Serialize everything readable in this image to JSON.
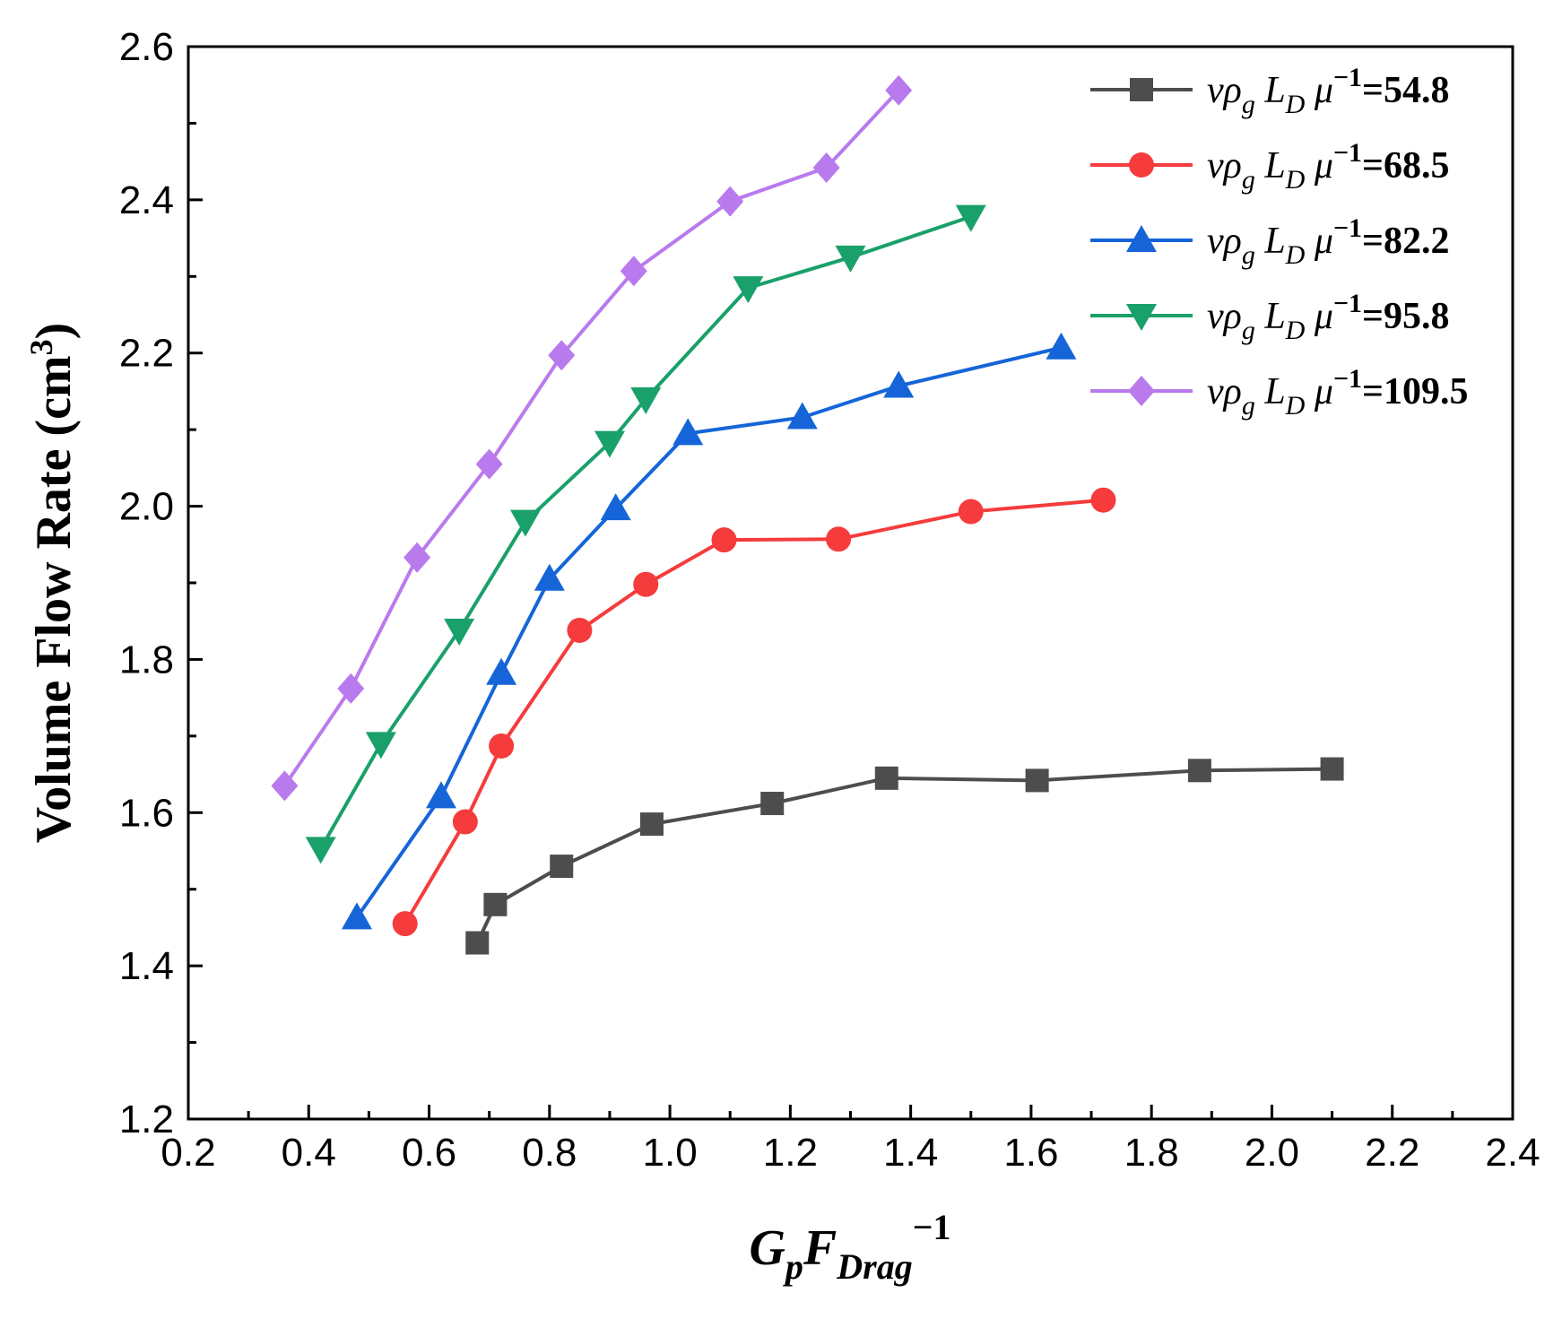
{
  "chart_data": {
    "type": "line",
    "title": "",
    "xlabel": {
      "base1": "G",
      "sub1": "p",
      "base2": "F",
      "sub2": "Drag",
      "sup": "−1"
    },
    "ylabel": {
      "text": "Volume Flow Rate (cm",
      "sup": "3",
      "close": ")"
    },
    "xlim": [
      0.2,
      2.4
    ],
    "ylim": [
      1.2,
      2.6
    ],
    "x_ticks": [
      "0.2",
      "0.4",
      "0.6",
      "0.8",
      "1.0",
      "1.2",
      "1.4",
      "1.6",
      "1.8",
      "2.0",
      "2.2",
      "2.4"
    ],
    "y_ticks": [
      "1.2",
      "1.4",
      "1.6",
      "1.8",
      "2.0",
      "2.2",
      "2.4",
      "2.6"
    ],
    "legend_position": "top-right",
    "legend_label": {
      "v": "v",
      "rho": "ρ",
      "g": "g",
      "L": "L",
      "D": "D",
      "mu": "μ",
      "sup": "−1",
      "eq": "="
    },
    "series": [
      {
        "name": "54.8",
        "color": "#4d4d4d",
        "marker": "square",
        "x": [
          0.68,
          0.71,
          0.82,
          0.97,
          1.17,
          1.36,
          1.61,
          1.88,
          2.1
        ],
        "y": [
          1.43,
          1.48,
          1.53,
          1.585,
          1.612,
          1.645,
          1.642,
          1.655,
          1.657
        ]
      },
      {
        "name": "68.5",
        "color": "#f53b3b",
        "marker": "circle",
        "x": [
          0.56,
          0.66,
          0.72,
          0.85,
          0.96,
          1.09,
          1.28,
          1.5,
          1.72
        ],
        "y": [
          1.455,
          1.588,
          1.687,
          1.838,
          1.898,
          1.956,
          1.957,
          1.993,
          2.008
        ]
      },
      {
        "name": "82.2",
        "color": "#1565d8",
        "marker": "triangle-up",
        "x": [
          0.48,
          0.62,
          0.72,
          0.8,
          0.91,
          1.03,
          1.22,
          1.38,
          1.65
        ],
        "y": [
          1.463,
          1.621,
          1.782,
          1.905,
          1.997,
          2.095,
          2.116,
          2.157,
          2.207
        ]
      },
      {
        "name": "95.8",
        "color": "#1aa06a",
        "marker": "triangle-down",
        "x": [
          0.42,
          0.52,
          0.65,
          0.76,
          0.9,
          0.96,
          1.13,
          1.3,
          1.5
        ],
        "y": [
          1.553,
          1.69,
          1.838,
          1.98,
          2.083,
          2.14,
          2.285,
          2.325,
          2.378
        ]
      },
      {
        "name": "109.5",
        "color": "#b97aee",
        "marker": "diamond",
        "x": [
          0.36,
          0.47,
          0.58,
          0.7,
          0.82,
          0.94,
          1.1,
          1.26,
          1.38
        ],
        "y": [
          1.635,
          1.762,
          1.933,
          2.055,
          2.197,
          2.307,
          2.398,
          2.442,
          2.543
        ]
      }
    ]
  }
}
